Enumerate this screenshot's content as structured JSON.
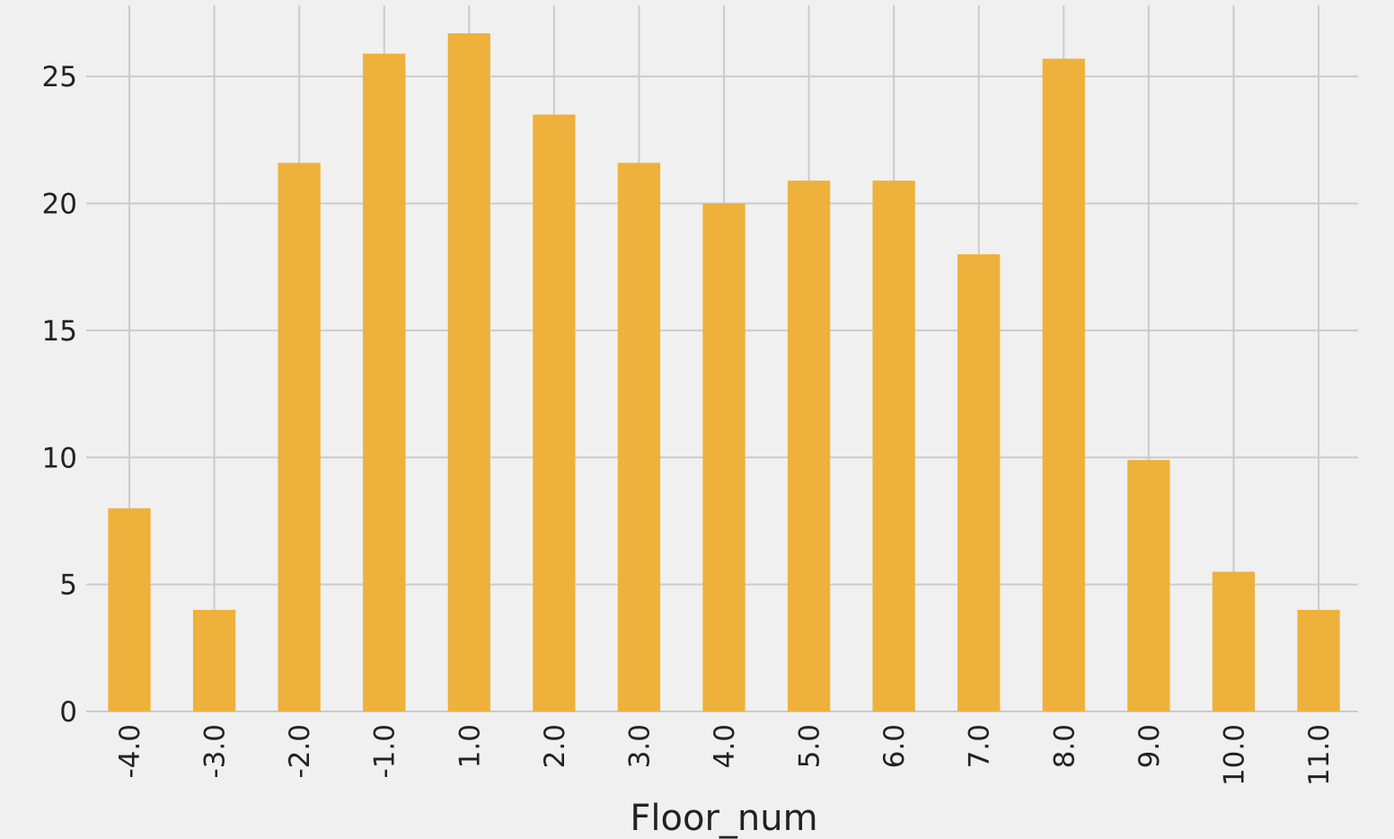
{
  "chart_data": {
    "type": "bar",
    "title": "",
    "xlabel": "Floor_num",
    "ylabel": "",
    "categories": [
      "-4.0",
      "-3.0",
      "-2.0",
      "-1.0",
      "1.0",
      "2.0",
      "3.0",
      "4.0",
      "5.0",
      "6.0",
      "7.0",
      "8.0",
      "9.0",
      "10.0",
      "11.0"
    ],
    "values": [
      8.0,
      4.0,
      21.6,
      25.9,
      26.7,
      23.5,
      21.6,
      20.0,
      20.9,
      20.9,
      18.0,
      25.7,
      9.9,
      5.5,
      4.0
    ],
    "ylim": [
      0,
      27.8
    ],
    "yticks": [
      0,
      5,
      10,
      15,
      20,
      25
    ],
    "grid": true,
    "legend": "none",
    "colors": {
      "bar": "#eeb13b",
      "background": "#f0f0f0",
      "grid": "#cbcbcb",
      "text": "#222222"
    }
  }
}
